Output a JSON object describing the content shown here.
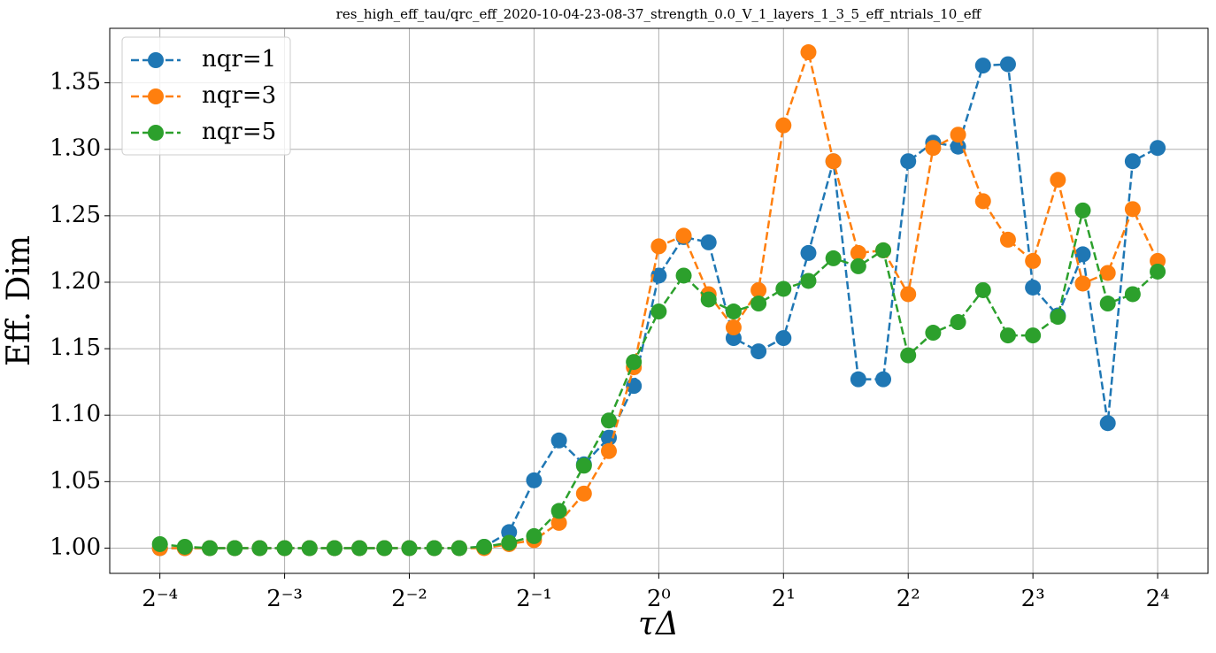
{
  "chart_data": {
    "type": "line",
    "title": "res_high_eff_tau/qrc_eff_2020-10-04-23-08-37_strength_0.0_V_1_layers_1_3_5_eff_ntrials_10_eff",
    "xlabel": "τΔ",
    "ylabel": "Eff. Dim",
    "xscale": "log2",
    "x": [
      0.0625,
      0.071794,
      0.082469,
      0.094732,
      0.108819,
      0.125,
      0.143587,
      0.164938,
      0.189465,
      0.217638,
      0.25,
      0.287175,
      0.329877,
      0.378929,
      0.435275,
      0.5,
      0.574349,
      0.659754,
      0.757858,
      0.870551,
      1,
      1.148698,
      1.319508,
      1.515717,
      1.741101,
      2,
      2.297397,
      2.639016,
      3.031433,
      3.482202,
      4,
      4.594794,
      5.278032,
      6.062866,
      6.964405,
      8,
      9.189587,
      10.556063,
      12.125733,
      13.928809,
      16
    ],
    "series": [
      {
        "name": "nqr=1",
        "color": "#1f77b4",
        "values": [
          1.0,
          1.0,
          1.0,
          1.0,
          1.0,
          1.0,
          1.0,
          1.0,
          1.0,
          1.0,
          1.0,
          1.0,
          1.0,
          1.001,
          1.012,
          1.051,
          1.081,
          1.063,
          1.083,
          1.122,
          1.205,
          1.234,
          1.23,
          1.158,
          1.148,
          1.158,
          1.222,
          1.291,
          1.127,
          1.127,
          1.291,
          1.305,
          1.302,
          1.363,
          1.364,
          1.196,
          1.175,
          1.221,
          1.094,
          1.291,
          1.301
        ]
      },
      {
        "name": "nqr=3",
        "color": "#ff7f0e",
        "values": [
          1.0,
          1.0,
          1.0,
          1.0,
          1.0,
          1.0,
          1.0,
          1.0,
          1.0,
          1.0,
          1.0,
          1.0,
          1.0,
          1.0,
          1.003,
          1.006,
          1.019,
          1.041,
          1.073,
          1.136,
          1.227,
          1.235,
          1.191,
          1.166,
          1.194,
          1.318,
          1.373,
          1.291,
          1.222,
          1.224,
          1.191,
          1.301,
          1.311,
          1.261,
          1.232,
          1.216,
          1.277,
          1.199,
          1.207,
          1.255,
          1.216
        ]
      },
      {
        "name": "nqr=5",
        "color": "#2ca02c",
        "values": [
          1.003,
          1.001,
          1.0,
          1.0,
          1.0,
          1.0,
          1.0,
          1.0,
          1.0,
          1.0,
          1.0,
          1.0,
          1.0,
          1.001,
          1.004,
          1.009,
          1.028,
          1.062,
          1.096,
          1.14,
          1.178,
          1.205,
          1.187,
          1.178,
          1.184,
          1.195,
          1.201,
          1.218,
          1.212,
          1.224,
          1.145,
          1.162,
          1.17,
          1.194,
          1.16,
          1.16,
          1.174,
          1.254,
          1.184,
          1.191,
          1.208
        ]
      }
    ],
    "xlim": [
      0.0473,
      21.17
    ],
    "ylim": [
      0.981,
      1.391
    ],
    "xticks": [
      {
        "value": 0.0625,
        "label": "2⁻⁴"
      },
      {
        "value": 0.125,
        "label": "2⁻³"
      },
      {
        "value": 0.25,
        "label": "2⁻²"
      },
      {
        "value": 0.5,
        "label": "2⁻¹"
      },
      {
        "value": 1,
        "label": "2⁰"
      },
      {
        "value": 2,
        "label": "2¹"
      },
      {
        "value": 4,
        "label": "2²"
      },
      {
        "value": 8,
        "label": "2³"
      },
      {
        "value": 16,
        "label": "2⁴"
      }
    ],
    "yticks": [
      {
        "value": 1.0,
        "label": "1.00"
      },
      {
        "value": 1.05,
        "label": "1.05"
      },
      {
        "value": 1.1,
        "label": "1.10"
      },
      {
        "value": 1.15,
        "label": "1.15"
      },
      {
        "value": 1.2,
        "label": "1.20"
      },
      {
        "value": 1.25,
        "label": "1.25"
      },
      {
        "value": 1.3,
        "label": "1.30"
      },
      {
        "value": 1.35,
        "label": "1.35"
      }
    ],
    "grid": true,
    "legend": "upper left"
  }
}
